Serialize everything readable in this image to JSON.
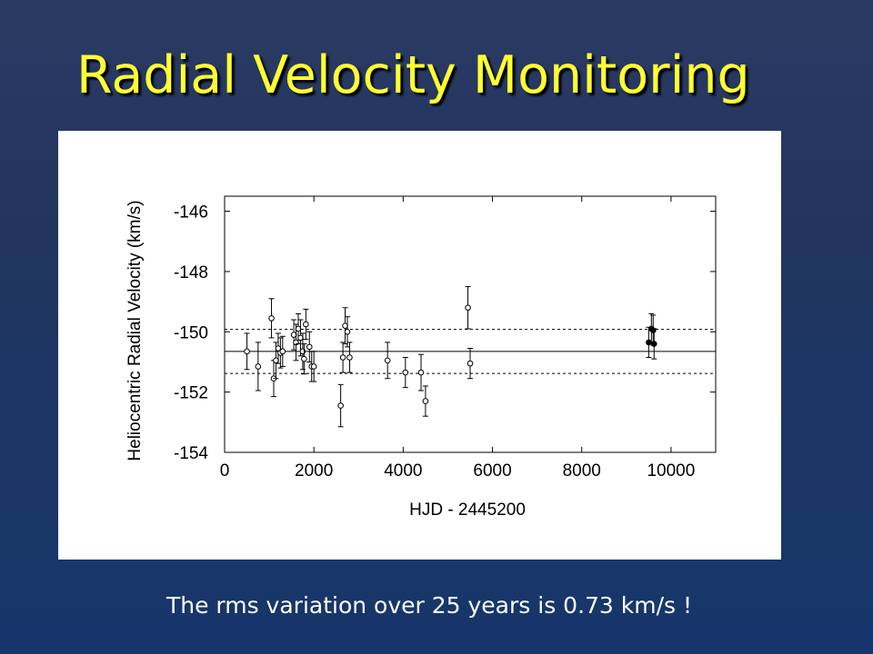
{
  "slide": {
    "title": "Radial Velocity Monitoring",
    "caption": "The rms variation over 25 years is 0.73 km/s !"
  },
  "colors": {
    "title": "#ffff33",
    "background": "#22355f",
    "caption": "#ffffff",
    "panel": "#ffffff",
    "ink": "#000000"
  },
  "chart_data": {
    "type": "scatter",
    "xlabel": "HJD - 2445200",
    "ylabel": "Heliocentric Radial Velocity (km/s)",
    "xlim": [
      0,
      11000
    ],
    "ylim": [
      -154,
      -145.5
    ],
    "x_ticks": [
      0,
      2000,
      4000,
      6000,
      8000,
      10000
    ],
    "x_tick_labels": [
      "0",
      "2000",
      "4000",
      "6000",
      "8000",
      "10000"
    ],
    "y_ticks": [
      -146,
      -148,
      -150,
      -152,
      -154
    ],
    "y_tick_labels": [
      "-146",
      "-148",
      "-150",
      "-152",
      "-154"
    ],
    "grid": false,
    "reference_lines": [
      {
        "style": "solid",
        "y": -150.65
      },
      {
        "style": "dashed",
        "y": -149.92
      },
      {
        "style": "dashed",
        "y": -151.38
      }
    ],
    "series": [
      {
        "marker": "open-circle",
        "points": [
          {
            "x": 500,
            "y": -150.65,
            "err": 0.6
          },
          {
            "x": 750,
            "y": -151.15,
            "err": 0.8
          },
          {
            "x": 1050,
            "y": -149.55,
            "err": 0.65
          },
          {
            "x": 1100,
            "y": -151.55,
            "err": 0.6
          },
          {
            "x": 1150,
            "y": -150.95,
            "err": 0.6
          },
          {
            "x": 1200,
            "y": -150.55,
            "err": 0.5
          },
          {
            "x": 1250,
            "y": -150.7,
            "err": 0.5
          },
          {
            "x": 1300,
            "y": -150.65,
            "err": 0.5
          },
          {
            "x": 1550,
            "y": -150.1,
            "err": 0.5
          },
          {
            "x": 1600,
            "y": -150.35,
            "err": 0.6
          },
          {
            "x": 1650,
            "y": -149.9,
            "err": 0.5
          },
          {
            "x": 1700,
            "y": -150.2,
            "err": 0.6
          },
          {
            "x": 1750,
            "y": -150.65,
            "err": 0.6
          },
          {
            "x": 1780,
            "y": -150.9,
            "err": 0.5
          },
          {
            "x": 1820,
            "y": -149.75,
            "err": 0.5
          },
          {
            "x": 1900,
            "y": -150.5,
            "err": 0.5
          },
          {
            "x": 1950,
            "y": -151.15,
            "err": 0.5
          },
          {
            "x": 2000,
            "y": -151.15,
            "err": 0.5
          },
          {
            "x": 2600,
            "y": -152.45,
            "err": 0.7
          },
          {
            "x": 2650,
            "y": -150.85,
            "err": 0.5
          },
          {
            "x": 2700,
            "y": -149.8,
            "err": 0.6
          },
          {
            "x": 2750,
            "y": -150.0,
            "err": 0.5
          },
          {
            "x": 2800,
            "y": -150.85,
            "err": 0.5
          },
          {
            "x": 3650,
            "y": -150.95,
            "err": 0.6
          },
          {
            "x": 4050,
            "y": -151.35,
            "err": 0.5
          },
          {
            "x": 4400,
            "y": -151.35,
            "err": 0.6
          },
          {
            "x": 4500,
            "y": -152.3,
            "err": 0.5
          },
          {
            "x": 5450,
            "y": -149.2,
            "err": 0.7
          },
          {
            "x": 5500,
            "y": -151.05,
            "err": 0.5
          }
        ]
      },
      {
        "marker": "filled-circle",
        "points": [
          {
            "x": 9500,
            "y": -150.35,
            "err": 0.5
          },
          {
            "x": 9560,
            "y": -149.9,
            "err": 0.5
          },
          {
            "x": 9600,
            "y": -149.95,
            "err": 0.5
          },
          {
            "x": 9620,
            "y": -150.4,
            "err": 0.5
          }
        ]
      }
    ]
  }
}
